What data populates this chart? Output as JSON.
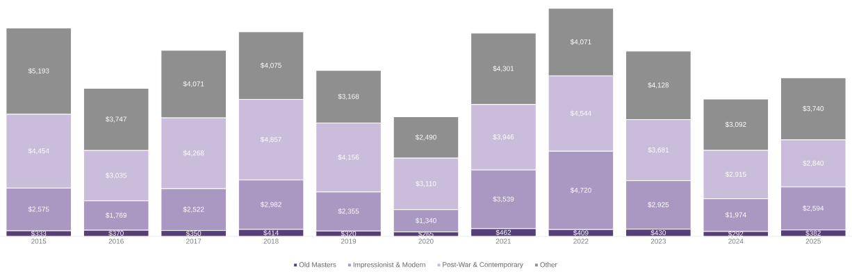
{
  "chart_data": {
    "type": "bar",
    "stacked": true,
    "legend": "bottom",
    "categories": [
      "2015",
      "2016",
      "2017",
      "2018",
      "2019",
      "2020",
      "2021",
      "2022",
      "2023",
      "2024",
      "2025"
    ],
    "series": [
      {
        "name": "Old Masters",
        "color": "#56407a",
        "values": [
          333,
          370,
          350,
          414,
          320,
          265,
          462,
          409,
          430,
          292,
          382
        ],
        "value_labels": [
          "$333",
          "$370",
          "$350",
          "$414",
          "$320",
          "$265",
          "$462",
          "$409",
          "$430",
          "$292",
          "$382"
        ]
      },
      {
        "name": "Impressionist & Modern",
        "color": "#a999c2",
        "values": [
          2575,
          1769,
          2522,
          2982,
          2355,
          1340,
          3539,
          4720,
          2925,
          1974,
          2594
        ],
        "value_labels": [
          "$2,575",
          "$1,769",
          "$2,522",
          "$2,982",
          "$2,355",
          "$1,340",
          "$3,539",
          "$4,720",
          "$2,925",
          "$1,974",
          "$2,594"
        ]
      },
      {
        "name": "Post-War & Contemporary",
        "color": "#c9bddb",
        "values": [
          4454,
          3035,
          4268,
          4857,
          4156,
          3110,
          3946,
          4544,
          3681,
          2915,
          2840
        ],
        "value_labels": [
          "$4,454",
          "$3,035",
          "$4,268",
          "$4,857",
          "$4,156",
          "$3,110",
          "$3,946",
          "$4,544",
          "$3,681",
          "$2,915",
          "$2,840"
        ]
      },
      {
        "name": "Other",
        "color": "#8f8f8f",
        "values": [
          5193,
          3747,
          4071,
          4075,
          3168,
          2490,
          4301,
          4071,
          4128,
          3092,
          3740
        ],
        "value_labels": [
          "$5,193",
          "$3,747",
          "$4,071",
          "$4,075",
          "$3,168",
          "$2,490",
          "$4,301",
          "$4,071",
          "$4,128",
          "$3,092",
          "$3,740"
        ]
      }
    ]
  }
}
